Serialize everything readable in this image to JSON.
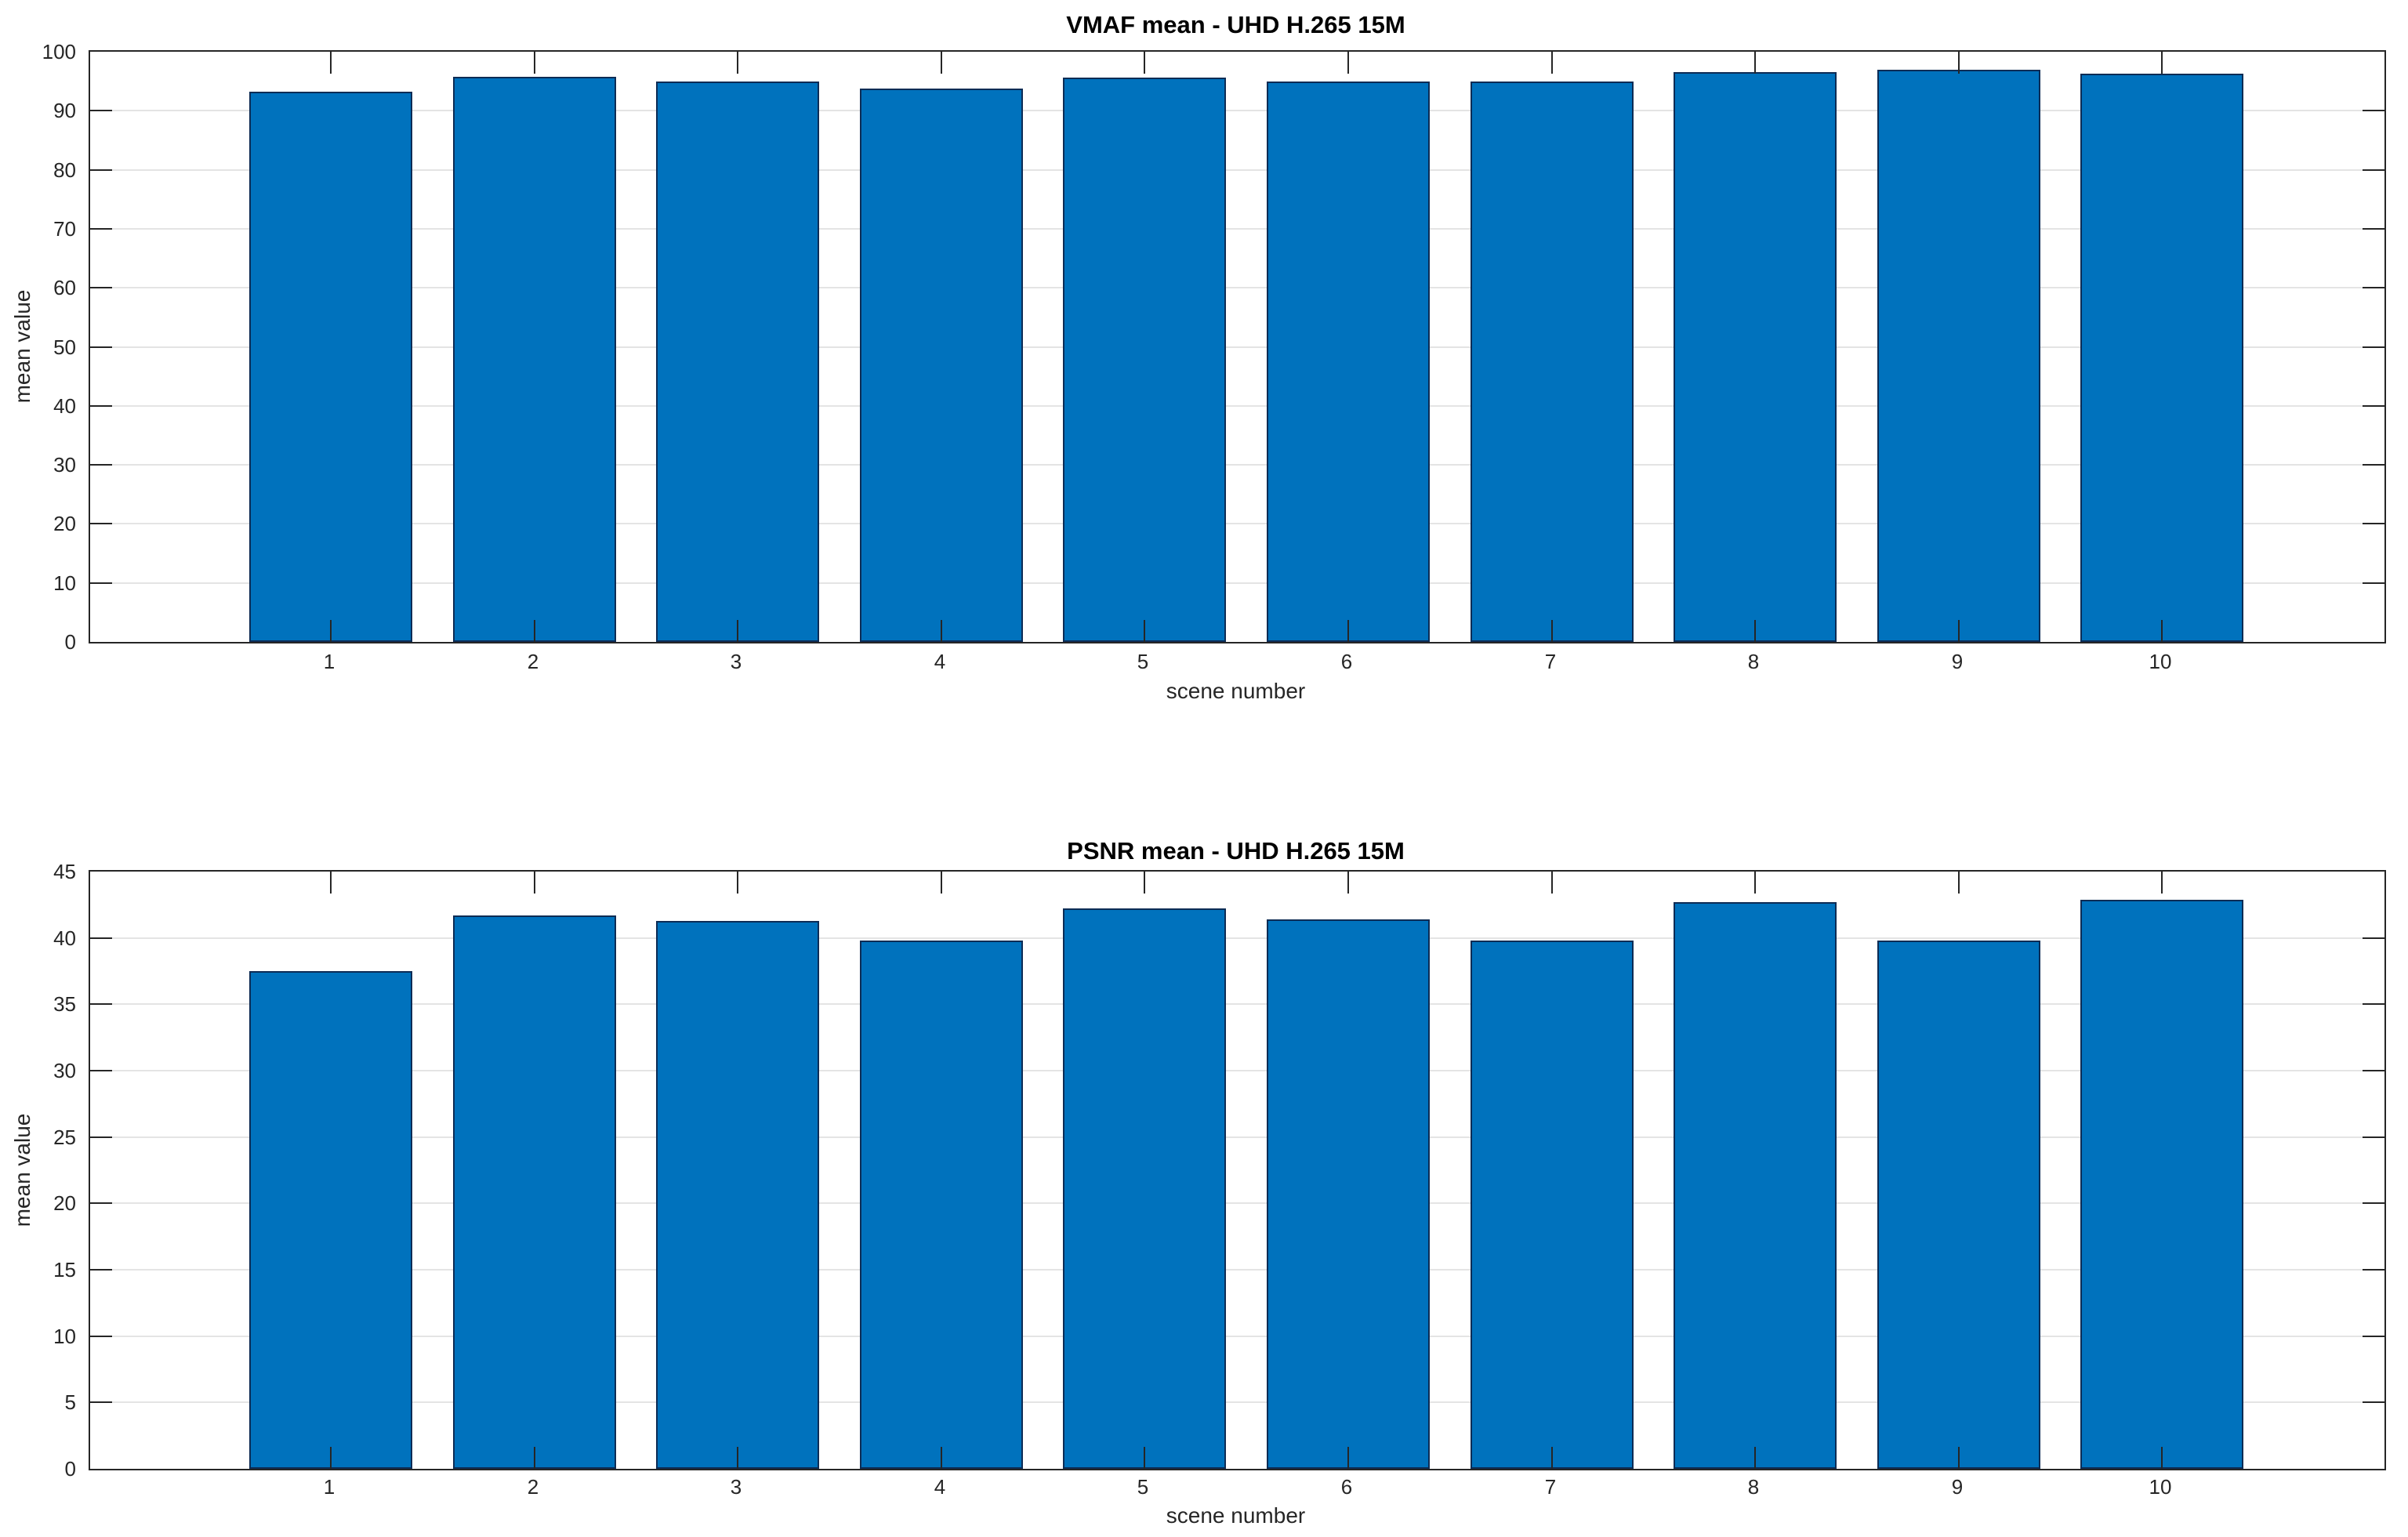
{
  "figure": {
    "background_color": "#ffffff",
    "bar_fill_color": "#0072BD",
    "bar_edge_color": "#0d2c55",
    "axis_color": "#262626",
    "grid_color": "#e4e4e4",
    "text_color": "#262626",
    "title_color": "#000000"
  },
  "chart_data": [
    {
      "id": "vmaf",
      "type": "bar",
      "title": "VMAF mean - UHD H.265 15M",
      "xlabel": "scene number",
      "ylabel": "mean value",
      "categories": [
        "1",
        "2",
        "3",
        "4",
        "5",
        "6",
        "7",
        "8",
        "9",
        "10"
      ],
      "values": [
        93.2,
        95.7,
        95.0,
        93.7,
        95.6,
        95.0,
        94.9,
        96.5,
        97.0,
        96.3
      ],
      "ylim": [
        0,
        100
      ],
      "yticks": [
        0,
        10,
        20,
        30,
        40,
        50,
        60,
        70,
        80,
        90,
        100
      ],
      "grid": "horizontal",
      "legend": "none"
    },
    {
      "id": "psnr",
      "type": "bar",
      "title": "PSNR mean - UHD H.265 15M",
      "xlabel": "scene number",
      "ylabel": "mean value",
      "categories": [
        "1",
        "2",
        "3",
        "4",
        "5",
        "6",
        "7",
        "8",
        "9",
        "10"
      ],
      "values": [
        37.5,
        41.7,
        41.3,
        39.8,
        42.2,
        41.4,
        39.8,
        42.7,
        39.8,
        42.9
      ],
      "ylim": [
        0,
        45
      ],
      "yticks": [
        0,
        5,
        10,
        15,
        20,
        25,
        30,
        35,
        40,
        45
      ],
      "grid": "horizontal",
      "legend": "none"
    }
  ]
}
